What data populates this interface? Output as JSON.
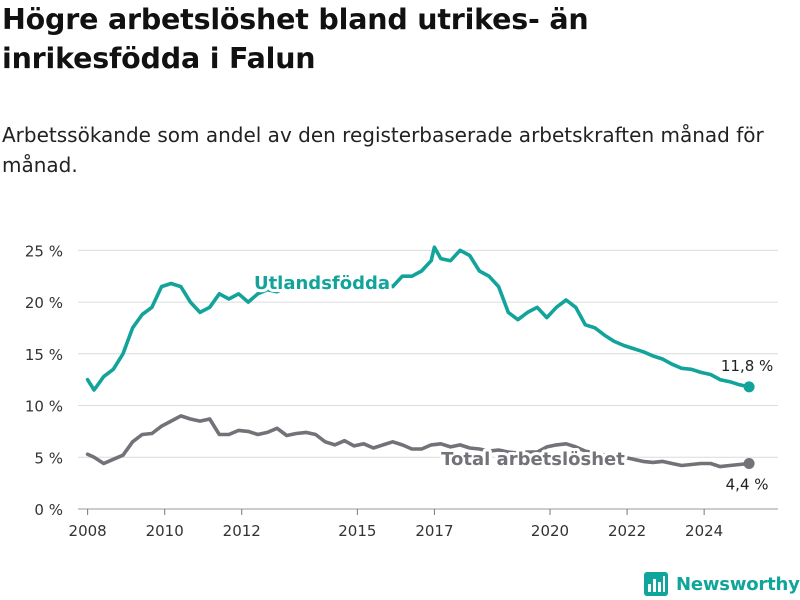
{
  "title": "Högre arbetslöshet bland utrikes- än inrikesfödda i Falun",
  "subtitle": "Arbetssökande som andel av den registerbaserade arbetskraften månad för månad.",
  "brand": {
    "name": "Newsworthy",
    "icon": "bar-chart-logo-icon",
    "color": "#0fa59b"
  },
  "chart_data": {
    "type": "line",
    "title": "Högre arbetslöshet bland utrikes- än inrikesfödda i Falun",
    "subtitle": "Arbetssökande som andel av den registerbaserade arbetskraften månad för månad.",
    "xlabel": "",
    "ylabel": "",
    "x_ticks": [
      "2008",
      "2010",
      "2012",
      "2015",
      "2017",
      "2020",
      "2022",
      "2024"
    ],
    "y_ticks": [
      0,
      5,
      10,
      15,
      20,
      25
    ],
    "y_tick_labels": [
      "0 %",
      "5 %",
      "10 %",
      "15 %",
      "20 %",
      "25 %"
    ],
    "ylim": [
      0,
      26
    ],
    "xlim": [
      "2007-10",
      "2025-12"
    ],
    "grid": true,
    "legend": "inline labels",
    "series": [
      {
        "name": "Utlandsfödda",
        "color": "#12a49b",
        "end_label": "11,8 %",
        "points": [
          [
            "2008-01",
            12.5
          ],
          [
            "2008-03",
            11.5
          ],
          [
            "2008-06",
            12.8
          ],
          [
            "2008-09",
            13.5
          ],
          [
            "2008-12",
            15.0
          ],
          [
            "2009-03",
            17.5
          ],
          [
            "2009-06",
            18.8
          ],
          [
            "2009-09",
            19.5
          ],
          [
            "2009-12",
            21.5
          ],
          [
            "2010-03",
            21.8
          ],
          [
            "2010-06",
            21.5
          ],
          [
            "2010-09",
            20.0
          ],
          [
            "2010-12",
            19.0
          ],
          [
            "2011-03",
            19.5
          ],
          [
            "2011-06",
            20.8
          ],
          [
            "2011-09",
            20.3
          ],
          [
            "2011-12",
            20.8
          ],
          [
            "2012-03",
            20.0
          ],
          [
            "2012-06",
            20.8
          ],
          [
            "2012-09",
            21.2
          ],
          [
            "2012-12",
            21.0
          ],
          [
            "2013-03",
            21.5
          ],
          [
            "2013-06",
            21.3
          ],
          [
            "2013-09",
            21.8
          ],
          [
            "2013-12",
            22.0
          ],
          [
            "2014-03",
            21.5
          ],
          [
            "2014-06",
            22.2
          ],
          [
            "2014-09",
            22.0
          ],
          [
            "2014-12",
            21.8
          ],
          [
            "2015-03",
            22.3
          ],
          [
            "2015-06",
            21.5
          ],
          [
            "2015-09",
            22.0
          ],
          [
            "2015-12",
            21.5
          ],
          [
            "2016-03",
            22.5
          ],
          [
            "2016-06",
            22.5
          ],
          [
            "2016-09",
            23.0
          ],
          [
            "2016-12",
            24.0
          ],
          [
            "2017-01",
            25.3
          ],
          [
            "2017-03",
            24.2
          ],
          [
            "2017-06",
            24.0
          ],
          [
            "2017-09",
            25.0
          ],
          [
            "2017-12",
            24.5
          ],
          [
            "2018-03",
            23.0
          ],
          [
            "2018-06",
            22.5
          ],
          [
            "2018-09",
            21.5
          ],
          [
            "2018-12",
            19.0
          ],
          [
            "2019-03",
            18.3
          ],
          [
            "2019-06",
            19.0
          ],
          [
            "2019-09",
            19.5
          ],
          [
            "2019-12",
            18.5
          ],
          [
            "2020-03",
            19.5
          ],
          [
            "2020-06",
            20.2
          ],
          [
            "2020-09",
            19.5
          ],
          [
            "2020-12",
            17.8
          ],
          [
            "2021-03",
            17.5
          ],
          [
            "2021-06",
            16.8
          ],
          [
            "2021-09",
            16.2
          ],
          [
            "2021-12",
            15.8
          ],
          [
            "2022-03",
            15.5
          ],
          [
            "2022-06",
            15.2
          ],
          [
            "2022-09",
            14.8
          ],
          [
            "2022-12",
            14.5
          ],
          [
            "2023-03",
            14.0
          ],
          [
            "2023-06",
            13.6
          ],
          [
            "2023-09",
            13.5
          ],
          [
            "2023-12",
            13.2
          ],
          [
            "2024-03",
            13.0
          ],
          [
            "2024-06",
            12.5
          ],
          [
            "2024-09",
            12.3
          ],
          [
            "2024-12",
            12.0
          ],
          [
            "2025-03",
            11.8
          ]
        ]
      },
      {
        "name": "Total arbetslöshet",
        "color": "#737278",
        "end_label": "4,4 %",
        "points": [
          [
            "2008-01",
            5.3
          ],
          [
            "2008-03",
            5.0
          ],
          [
            "2008-06",
            4.4
          ],
          [
            "2008-09",
            4.8
          ],
          [
            "2008-12",
            5.2
          ],
          [
            "2009-03",
            6.5
          ],
          [
            "2009-06",
            7.2
          ],
          [
            "2009-09",
            7.3
          ],
          [
            "2009-12",
            8.0
          ],
          [
            "2010-03",
            8.5
          ],
          [
            "2010-06",
            9.0
          ],
          [
            "2010-09",
            8.7
          ],
          [
            "2010-12",
            8.5
          ],
          [
            "2011-03",
            8.7
          ],
          [
            "2011-06",
            7.2
          ],
          [
            "2011-09",
            7.2
          ],
          [
            "2011-12",
            7.6
          ],
          [
            "2012-03",
            7.5
          ],
          [
            "2012-06",
            7.2
          ],
          [
            "2012-09",
            7.4
          ],
          [
            "2012-12",
            7.8
          ],
          [
            "2013-03",
            7.1
          ],
          [
            "2013-06",
            7.3
          ],
          [
            "2013-09",
            7.4
          ],
          [
            "2013-12",
            7.2
          ],
          [
            "2014-03",
            6.5
          ],
          [
            "2014-06",
            6.2
          ],
          [
            "2014-09",
            6.6
          ],
          [
            "2014-12",
            6.1
          ],
          [
            "2015-03",
            6.3
          ],
          [
            "2015-06",
            5.9
          ],
          [
            "2015-09",
            6.2
          ],
          [
            "2015-12",
            6.5
          ],
          [
            "2016-03",
            6.2
          ],
          [
            "2016-06",
            5.8
          ],
          [
            "2016-09",
            5.8
          ],
          [
            "2016-12",
            6.2
          ],
          [
            "2017-03",
            6.3
          ],
          [
            "2017-06",
            6.0
          ],
          [
            "2017-09",
            6.2
          ],
          [
            "2017-12",
            5.9
          ],
          [
            "2018-03",
            5.8
          ],
          [
            "2018-06",
            5.6
          ],
          [
            "2018-09",
            5.7
          ],
          [
            "2018-12",
            5.5
          ],
          [
            "2019-03",
            5.4
          ],
          [
            "2019-06",
            5.5
          ],
          [
            "2019-09",
            5.5
          ],
          [
            "2019-12",
            6.0
          ],
          [
            "2020-03",
            6.2
          ],
          [
            "2020-06",
            6.3
          ],
          [
            "2020-09",
            6.0
          ],
          [
            "2020-12",
            5.6
          ],
          [
            "2021-03",
            5.4
          ],
          [
            "2021-06",
            5.2
          ],
          [
            "2021-09",
            5.0
          ],
          [
            "2021-12",
            5.0
          ],
          [
            "2022-03",
            4.8
          ],
          [
            "2022-06",
            4.6
          ],
          [
            "2022-09",
            4.5
          ],
          [
            "2022-12",
            4.6
          ],
          [
            "2023-03",
            4.4
          ],
          [
            "2023-06",
            4.2
          ],
          [
            "2023-09",
            4.3
          ],
          [
            "2023-12",
            4.4
          ],
          [
            "2024-03",
            4.4
          ],
          [
            "2024-06",
            4.1
          ],
          [
            "2024-09",
            4.2
          ],
          [
            "2024-12",
            4.3
          ],
          [
            "2025-03",
            4.4
          ]
        ]
      }
    ]
  }
}
